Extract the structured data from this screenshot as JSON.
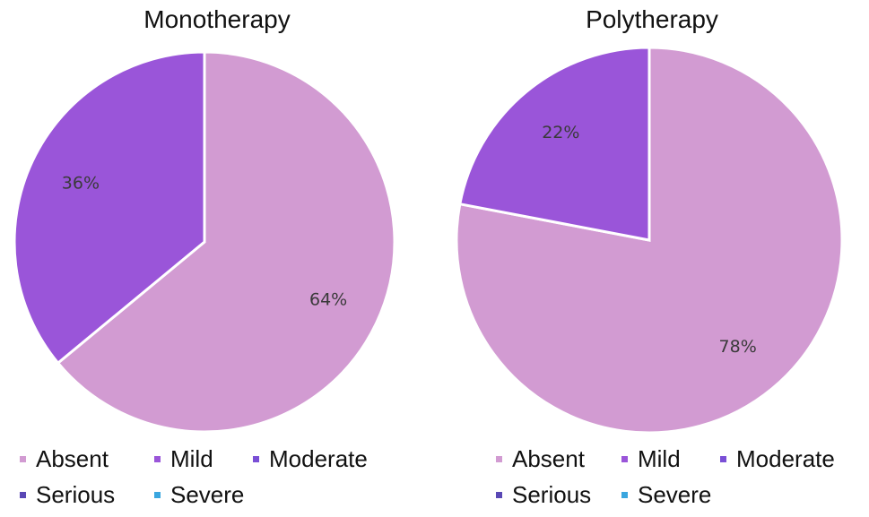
{
  "chart_data": [
    {
      "type": "pie",
      "title": "Monotherapy",
      "slices": [
        {
          "label": "Absent",
          "value": 64,
          "display": "64%",
          "color": "#d29bd2"
        },
        {
          "label": "Mild",
          "value": 36,
          "display": "36%",
          "color": "#9a55d9"
        }
      ],
      "legend": [
        {
          "label": "Absent",
          "color": "#d29bd2"
        },
        {
          "label": "Mild",
          "color": "#9a55d9"
        },
        {
          "label": "Moderate",
          "color": "#7a4fd6"
        },
        {
          "label": "Serious",
          "color": "#5a48b5"
        },
        {
          "label": "Severe",
          "color": "#3aa6df"
        }
      ],
      "legend_placement": "bottom"
    },
    {
      "type": "pie",
      "title": "Polytherapy",
      "slices": [
        {
          "label": "Absent",
          "value": 78,
          "display": "78%",
          "color": "#d29bd2"
        },
        {
          "label": "Mild",
          "value": 22,
          "display": "22%",
          "color": "#9a55d9"
        }
      ],
      "legend": [
        {
          "label": "Absent",
          "color": "#d29bd2"
        },
        {
          "label": "Mild",
          "color": "#9a55d9"
        },
        {
          "label": "Moderate",
          "color": "#7a4fd6"
        },
        {
          "label": "Serious",
          "color": "#5a48b5"
        },
        {
          "label": "Severe",
          "color": "#3aa6df"
        }
      ],
      "legend_placement": "bottom"
    }
  ]
}
